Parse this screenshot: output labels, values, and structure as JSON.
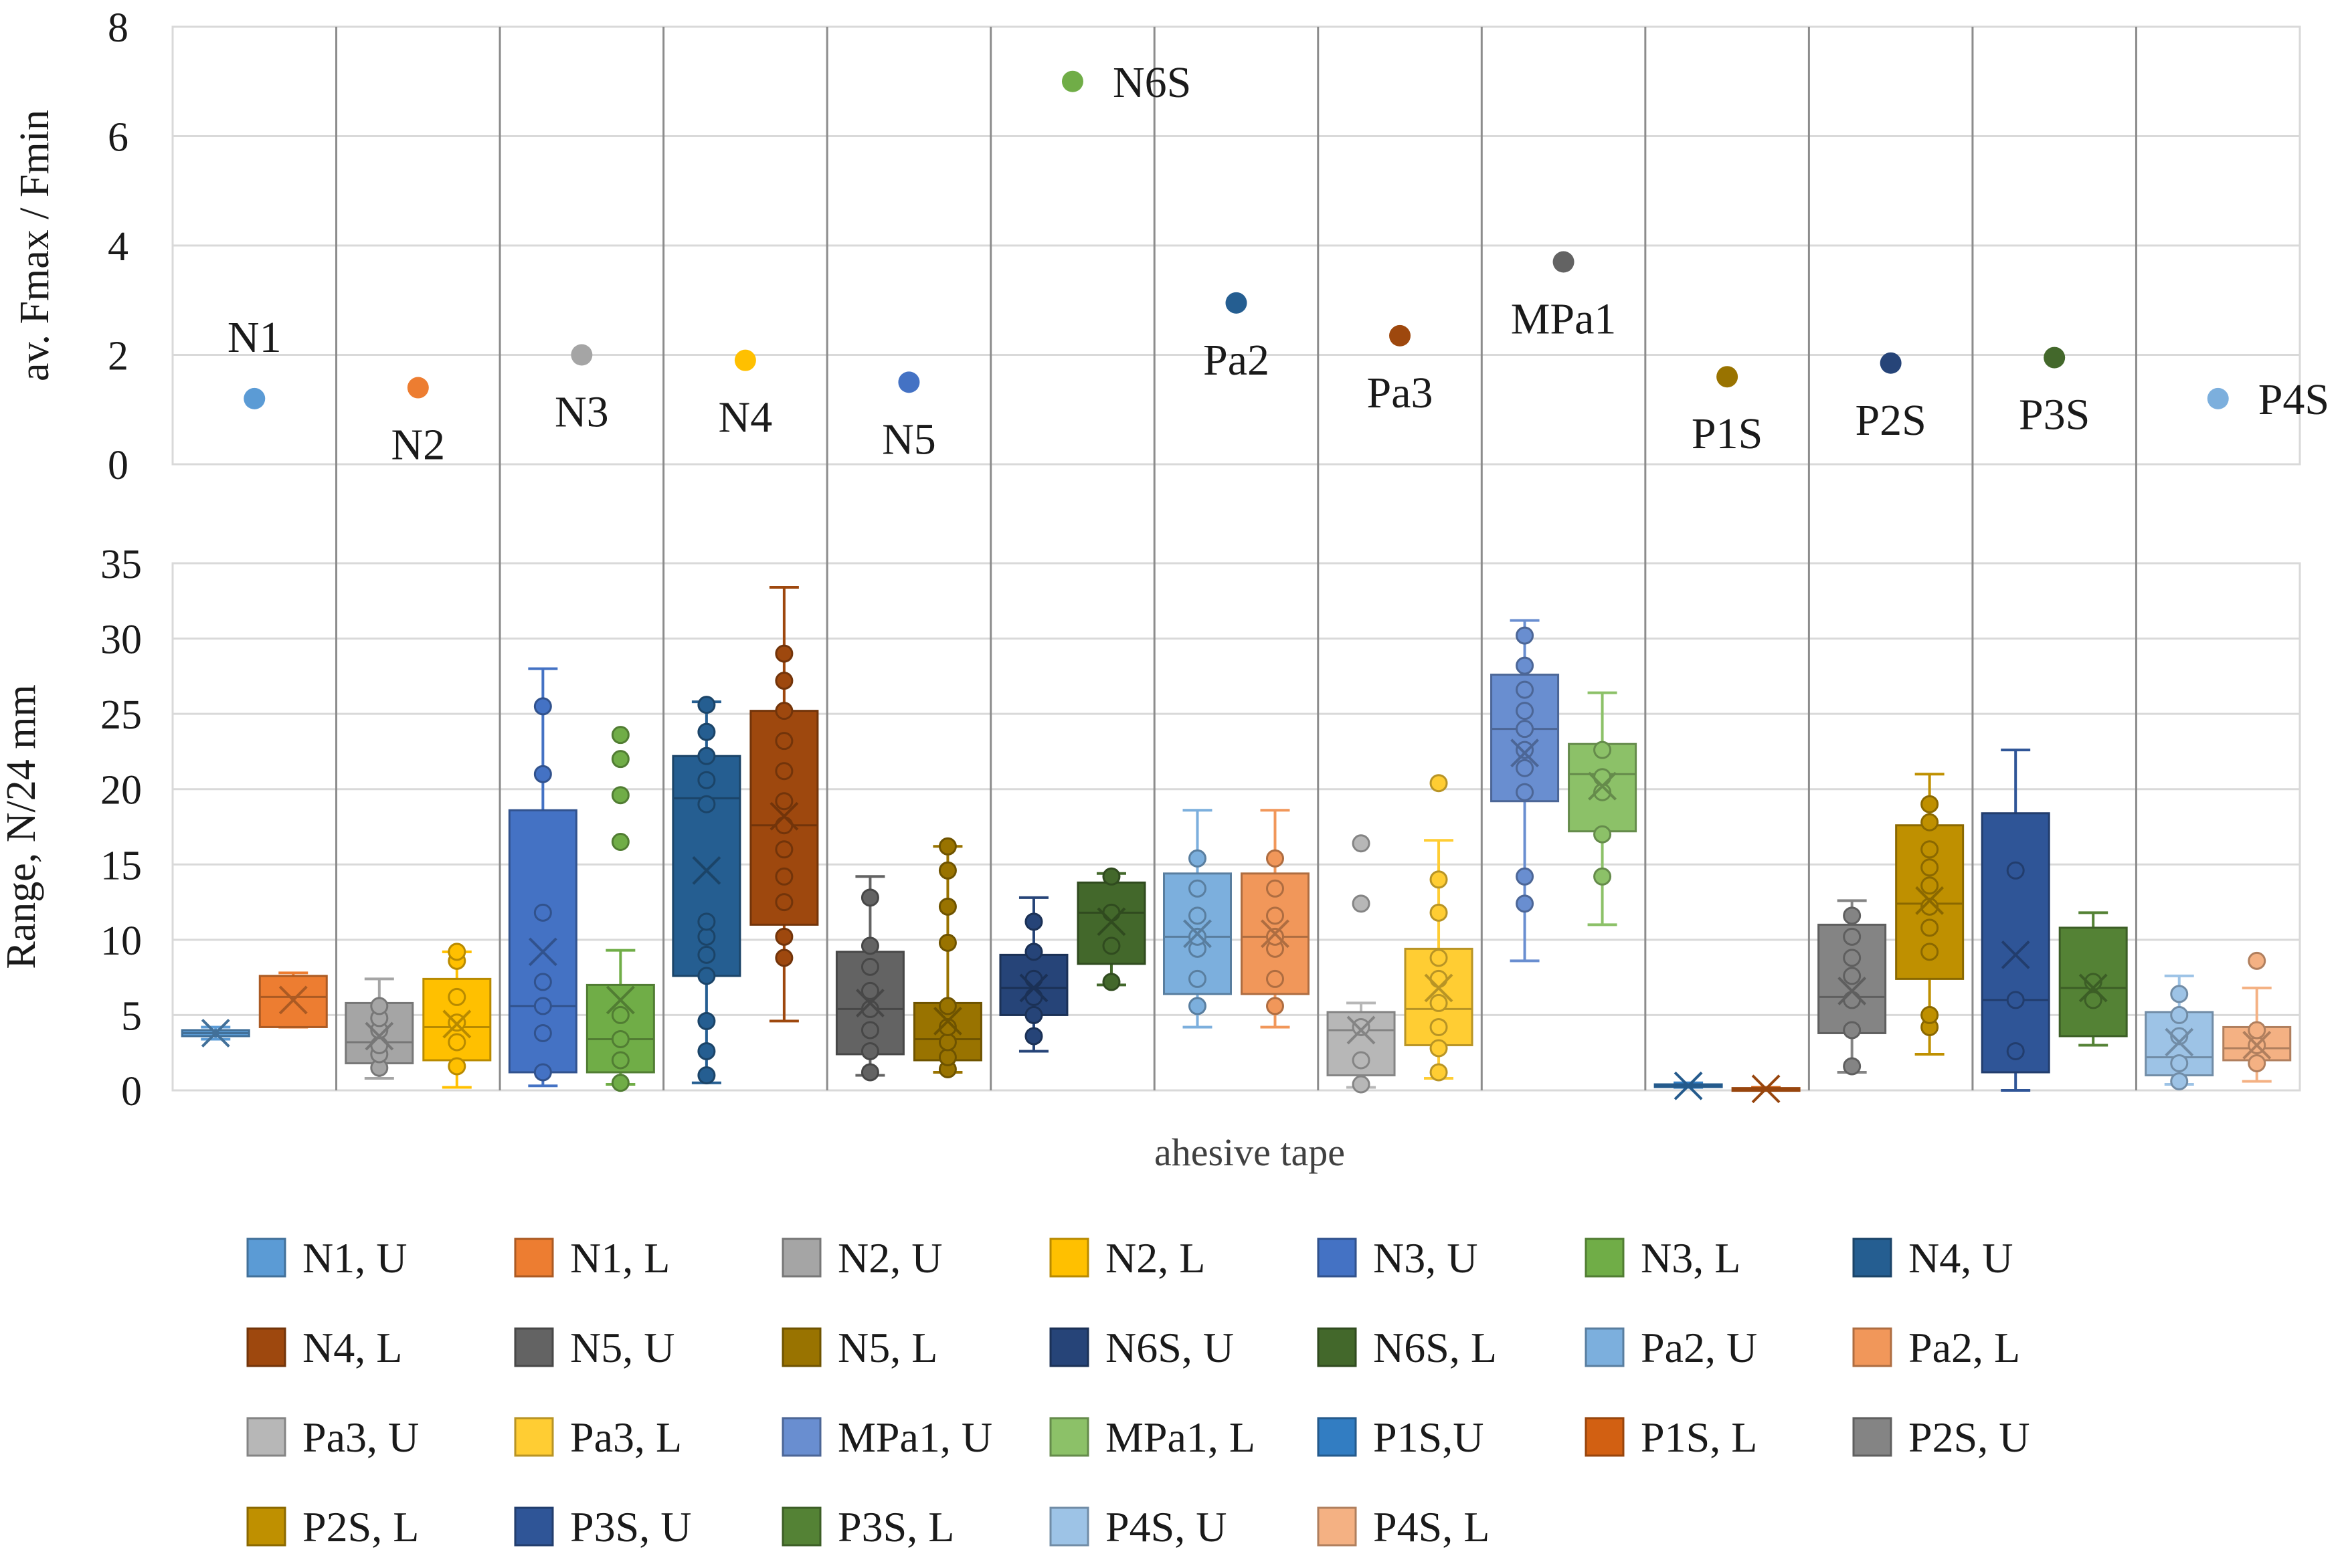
{
  "chart_data": [
    {
      "type": "scatter",
      "ylabel": "av. Fmax / Fmin",
      "ylim": [
        0,
        8
      ],
      "yticks": [
        0,
        2,
        4,
        6,
        8
      ],
      "points": [
        {
          "label": "N1",
          "y": 1.2,
          "color": "#5b9bd5",
          "label_pos": "above"
        },
        {
          "label": "N2",
          "y": 1.4,
          "color": "#ed7d31",
          "label_pos": "below"
        },
        {
          "label": "N3",
          "y": 2.0,
          "color": "#a5a5a5",
          "label_pos": "below"
        },
        {
          "label": "N4",
          "y": 1.9,
          "color": "#ffc000",
          "label_pos": "below"
        },
        {
          "label": "N5",
          "y": 1.5,
          "color": "#4472c4",
          "label_pos": "below"
        },
        {
          "label": "N6S",
          "y": 7.0,
          "color": "#70ad47",
          "label_pos": "right"
        },
        {
          "label": "Pa2",
          "y": 2.95,
          "color": "#255e91",
          "label_pos": "below"
        },
        {
          "label": "Pa3",
          "y": 2.35,
          "color": "#9e480e",
          "label_pos": "below"
        },
        {
          "label": "MPa1",
          "y": 3.7,
          "color": "#636363",
          "label_pos": "below"
        },
        {
          "label": "P1S",
          "y": 1.6,
          "color": "#997300",
          "label_pos": "below"
        },
        {
          "label": "P2S",
          "y": 1.85,
          "color": "#264478",
          "label_pos": "below"
        },
        {
          "label": "P3S",
          "y": 1.95,
          "color": "#43682b",
          "label_pos": "below"
        },
        {
          "label": "P4S",
          "y": 1.2,
          "color": "#7cafdd",
          "label_pos": "right"
        }
      ]
    },
    {
      "type": "box",
      "ylabel": "Range, N/24 mm",
      "xlabel": "ahesive tape",
      "ylim": [
        0,
        35
      ],
      "yticks": [
        0,
        5,
        10,
        15,
        20,
        25,
        30,
        35
      ],
      "series": [
        {
          "name": "N1, U",
          "color": "#5b9bd5",
          "min": 3.4,
          "q1": 3.6,
          "median": 3.8,
          "q3": 4.0,
          "max": 4.2,
          "mean": 3.8,
          "points": []
        },
        {
          "name": "N1, L",
          "color": "#ed7d31",
          "min": 4.2,
          "q1": 4.2,
          "median": 6.2,
          "q3": 7.6,
          "max": 7.8,
          "mean": 6.0,
          "points": []
        },
        {
          "name": "N2, U",
          "color": "#a5a5a5",
          "min": 0.8,
          "q1": 1.8,
          "median": 3.2,
          "q3": 5.8,
          "max": 7.4,
          "mean": 3.6,
          "points": [
            1.5,
            2.4,
            3.0,
            4.0,
            4.8,
            5.6
          ]
        },
        {
          "name": "N2, L",
          "color": "#ffc000",
          "min": 0.2,
          "q1": 2.0,
          "median": 4.2,
          "q3": 7.4,
          "max": 9.2,
          "mean": 4.4,
          "points": [
            1.6,
            3.2,
            4.5,
            6.2,
            8.6,
            9.2
          ]
        },
        {
          "name": "N3, U",
          "color": "#4472c4",
          "min": 0.3,
          "q1": 1.2,
          "median": 5.6,
          "q3": 18.6,
          "max": 28.0,
          "mean": 9.2,
          "points": [
            1.2,
            3.8,
            5.6,
            7.2,
            11.8,
            21.0,
            25.5
          ]
        },
        {
          "name": "N3, L",
          "color": "#70ad47",
          "min": 0.4,
          "q1": 1.2,
          "median": 3.4,
          "q3": 7.0,
          "max": 9.3,
          "mean": 6.0,
          "points": [
            0.5,
            2.0,
            3.4,
            5.0,
            16.5,
            19.6,
            22.0,
            23.6
          ]
        },
        {
          "name": "N4, U",
          "color": "#255e91",
          "min": 0.5,
          "q1": 7.6,
          "median": 19.4,
          "q3": 22.2,
          "max": 25.8,
          "mean": 14.6,
          "points": [
            1.0,
            2.6,
            4.6,
            7.6,
            9.0,
            10.2,
            11.2,
            19.0,
            20.6,
            22.2,
            23.8,
            25.6
          ]
        },
        {
          "name": "N4, L",
          "color": "#9e480e",
          "min": 4.6,
          "q1": 11.0,
          "median": 17.6,
          "q3": 25.2,
          "max": 33.4,
          "mean": 18.2,
          "points": [
            8.8,
            10.2,
            12.5,
            14.2,
            16.0,
            17.6,
            19.2,
            21.2,
            23.2,
            25.2,
            27.2,
            29.0
          ]
        },
        {
          "name": "N5, U",
          "color": "#636363",
          "min": 1.0,
          "q1": 2.4,
          "median": 5.4,
          "q3": 9.2,
          "max": 14.2,
          "mean": 5.8,
          "points": [
            1.2,
            2.6,
            4.0,
            5.4,
            6.6,
            8.2,
            9.6,
            12.8
          ]
        },
        {
          "name": "N5, L",
          "color": "#997300",
          "min": 1.2,
          "q1": 2.0,
          "median": 3.4,
          "q3": 5.8,
          "max": 16.2,
          "mean": 4.6,
          "points": [
            1.4,
            2.2,
            3.2,
            4.2,
            5.6,
            9.8,
            12.2,
            14.6,
            16.2
          ]
        },
        {
          "name": "N6S, U",
          "color": "#264478",
          "min": 2.6,
          "q1": 5.0,
          "median": 6.8,
          "q3": 9.0,
          "max": 12.8,
          "mean": 6.8,
          "points": [
            3.6,
            5.0,
            6.2,
            7.4,
            9.2,
            11.2
          ]
        },
        {
          "name": "N6S, L",
          "color": "#43682b",
          "min": 7.0,
          "q1": 8.4,
          "median": 11.8,
          "q3": 13.8,
          "max": 14.4,
          "mean": 11.2,
          "points": [
            7.2,
            9.6,
            11.8,
            14.2
          ]
        },
        {
          "name": "Pa2, U",
          "color": "#7cafdd",
          "min": 4.2,
          "q1": 6.4,
          "median": 10.2,
          "q3": 14.4,
          "max": 18.6,
          "mean": 10.4,
          "points": [
            5.6,
            7.4,
            9.4,
            10.2,
            11.6,
            13.4,
            15.4
          ]
        },
        {
          "name": "Pa2, L",
          "color": "#f1975a",
          "min": 4.2,
          "q1": 6.4,
          "median": 10.2,
          "q3": 14.4,
          "max": 18.6,
          "mean": 10.4,
          "points": [
            5.6,
            7.4,
            9.4,
            10.2,
            11.6,
            13.4,
            15.4
          ]
        },
        {
          "name": "Pa3, U",
          "color": "#b7b7b7",
          "min": 0.2,
          "q1": 1.0,
          "median": 4.0,
          "q3": 5.2,
          "max": 5.8,
          "mean": 4.0,
          "points": [
            0.4,
            2.0,
            4.2,
            12.4,
            16.4
          ]
        },
        {
          "name": "Pa3, L",
          "color": "#ffcd33",
          "min": 0.8,
          "q1": 3.0,
          "median": 5.4,
          "q3": 9.4,
          "max": 16.6,
          "mean": 6.8,
          "points": [
            1.2,
            2.8,
            4.2,
            5.8,
            7.4,
            8.8,
            11.8,
            14.0,
            20.4
          ]
        },
        {
          "name": "MPa1, U",
          "color": "#698ed0",
          "min": 8.6,
          "q1": 19.2,
          "median": 24.0,
          "q3": 27.6,
          "max": 31.2,
          "mean": 22.4,
          "points": [
            12.4,
            14.2,
            19.8,
            21.4,
            22.6,
            24.0,
            25.2,
            26.6,
            28.2,
            30.2
          ]
        },
        {
          "name": "MPa1, L",
          "color": "#8cc168",
          "min": 11.0,
          "q1": 17.2,
          "median": 21.0,
          "q3": 23.0,
          "max": 26.4,
          "mean": 20.2,
          "points": [
            14.2,
            17.0,
            19.8,
            20.8,
            22.6
          ]
        },
        {
          "name": "P1S,U",
          "color": "#327dc2",
          "min": 0.2,
          "q1": 0.25,
          "median": 0.3,
          "q3": 0.4,
          "max": 0.5,
          "mean": 0.3,
          "points": []
        },
        {
          "name": "P1S, L",
          "color": "#d26012",
          "min": 0.0,
          "q1": 0.05,
          "median": 0.1,
          "q3": 0.15,
          "max": 0.2,
          "mean": 0.1,
          "points": []
        },
        {
          "name": "P2S, U",
          "color": "#848484",
          "min": 1.2,
          "q1": 3.8,
          "median": 6.2,
          "q3": 11.0,
          "max": 12.6,
          "mean": 6.6,
          "points": [
            1.6,
            4.0,
            6.0,
            7.6,
            8.8,
            10.2,
            11.6
          ]
        },
        {
          "name": "P2S, L",
          "color": "#bf9000",
          "min": 2.4,
          "q1": 7.4,
          "median": 12.4,
          "q3": 17.6,
          "max": 21.0,
          "mean": 12.6,
          "points": [
            4.2,
            5.0,
            9.2,
            10.8,
            12.2,
            13.6,
            14.8,
            16.0,
            17.8,
            19.0
          ]
        },
        {
          "name": "P3S, U",
          "color": "#2f5597",
          "min": 0.0,
          "q1": 1.2,
          "median": 6.0,
          "q3": 18.4,
          "max": 22.6,
          "mean": 9.0,
          "points": [
            2.6,
            6.0,
            14.6
          ]
        },
        {
          "name": "P3S, L",
          "color": "#548235",
          "min": 3.0,
          "q1": 3.6,
          "median": 6.8,
          "q3": 10.8,
          "max": 11.8,
          "mean": 6.8,
          "points": [
            6.0,
            7.2
          ]
        },
        {
          "name": "P4S, U",
          "color": "#9dc3e6",
          "min": 0.4,
          "q1": 1.0,
          "median": 2.2,
          "q3": 5.2,
          "max": 7.6,
          "mean": 3.2,
          "points": [
            0.6,
            1.8,
            3.6,
            5.0,
            6.4
          ]
        },
        {
          "name": "P4S, L",
          "color": "#f4b183",
          "min": 0.6,
          "q1": 2.0,
          "median": 2.8,
          "q3": 4.2,
          "max": 6.8,
          "mean": 3.0,
          "points": [
            1.8,
            3.0,
            4.0,
            8.6
          ]
        }
      ],
      "legend": {
        "position": "bottom",
        "items": [
          "N1, U",
          "N1, L",
          "N2, U",
          "N2, L",
          "N3, U",
          "N3, L",
          "N4, U",
          "N4, L",
          "N5, U",
          "N5, L",
          "N6S, U",
          "N6S, L",
          "Pa2, U",
          "Pa2, L",
          "Pa3, U",
          "Pa3, L",
          "MPa1, U",
          "MPa1, L",
          "P1S,U",
          "P1S, L",
          "P2S, U",
          "P2S, L",
          "P3S, U",
          "P3S, L",
          "P4S, U",
          "P4S, L"
        ]
      }
    }
  ]
}
